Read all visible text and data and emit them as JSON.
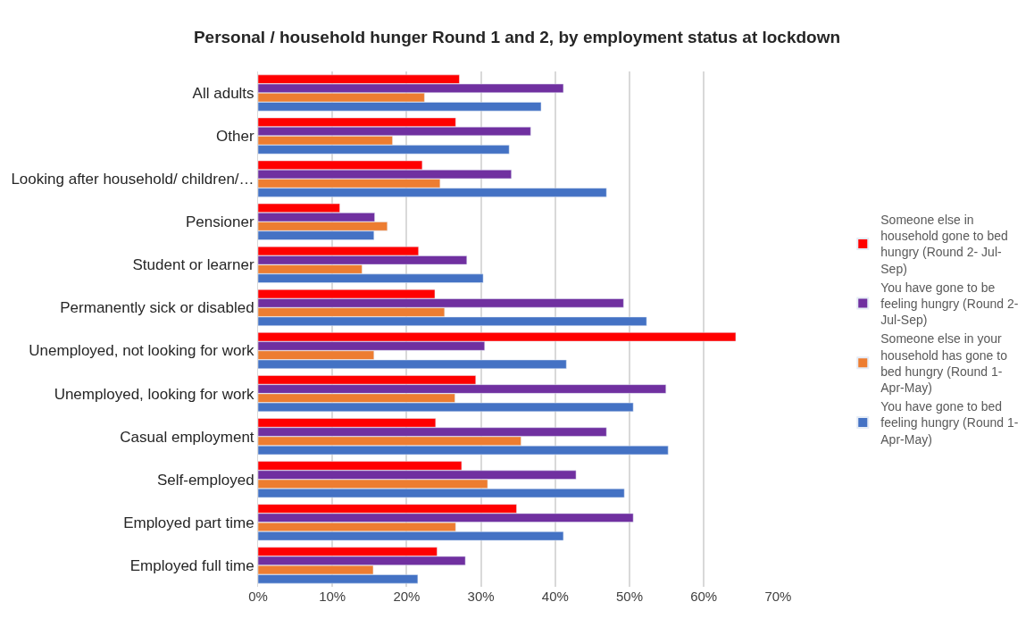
{
  "chart_data": {
    "type": "bar",
    "orientation": "horizontal",
    "title": "Personal / household hunger Round 1 and 2, by employment status at lockdown",
    "categories": [
      "All adults",
      "Other",
      "Looking after household/ children/…",
      "Pensioner",
      "Student or learner",
      "Permanently sick or disabled",
      "Unemployed, not looking for work",
      "Unemployed, looking for work",
      "Casual employment",
      "Self-employed",
      "Employed part time",
      "Employed full time"
    ],
    "series": [
      {
        "name": "Someone else in household gone to bed hungry (Round 2- Jul-Sep)",
        "color": "#ff0000",
        "values": [
          27.1,
          26.6,
          22.1,
          11.0,
          21.6,
          23.8,
          64.3,
          29.3,
          23.9,
          27.4,
          34.8,
          24.1
        ]
      },
      {
        "name": "You have gone to be feeling hungry (Round 2- Jul-Sep)",
        "color": "#7030a0",
        "values": [
          41.1,
          36.7,
          34.1,
          15.7,
          28.1,
          49.2,
          30.5,
          54.9,
          46.9,
          42.8,
          50.5,
          27.9
        ]
      },
      {
        "name": "Someone else in your household has gone to bed hungry (Round 1- Apr-May)",
        "color": "#ed7d31",
        "values": [
          22.4,
          18.1,
          24.5,
          17.4,
          14.0,
          25.1,
          15.6,
          26.5,
          35.4,
          30.9,
          26.6,
          15.5
        ]
      },
      {
        "name": "You have gone to bed feeling hungry (Round 1- Apr-May)",
        "color": "#4472c4",
        "values": [
          38.1,
          33.8,
          46.9,
          15.6,
          30.3,
          52.3,
          41.5,
          50.5,
          55.2,
          49.3,
          41.1,
          21.5
        ]
      }
    ],
    "xlim": [
      0,
      70
    ],
    "xticks": [
      {
        "value": 0,
        "label": "0%"
      },
      {
        "value": 10,
        "label": "10%"
      },
      {
        "value": 20,
        "label": "20%"
      },
      {
        "value": 30,
        "label": "30%"
      },
      {
        "value": 40,
        "label": "40%"
      },
      {
        "value": 50,
        "label": "50%"
      },
      {
        "value": 60,
        "label": "60%"
      },
      {
        "value": 70,
        "label": "70%"
      }
    ],
    "grid": "x",
    "legend": "right"
  }
}
